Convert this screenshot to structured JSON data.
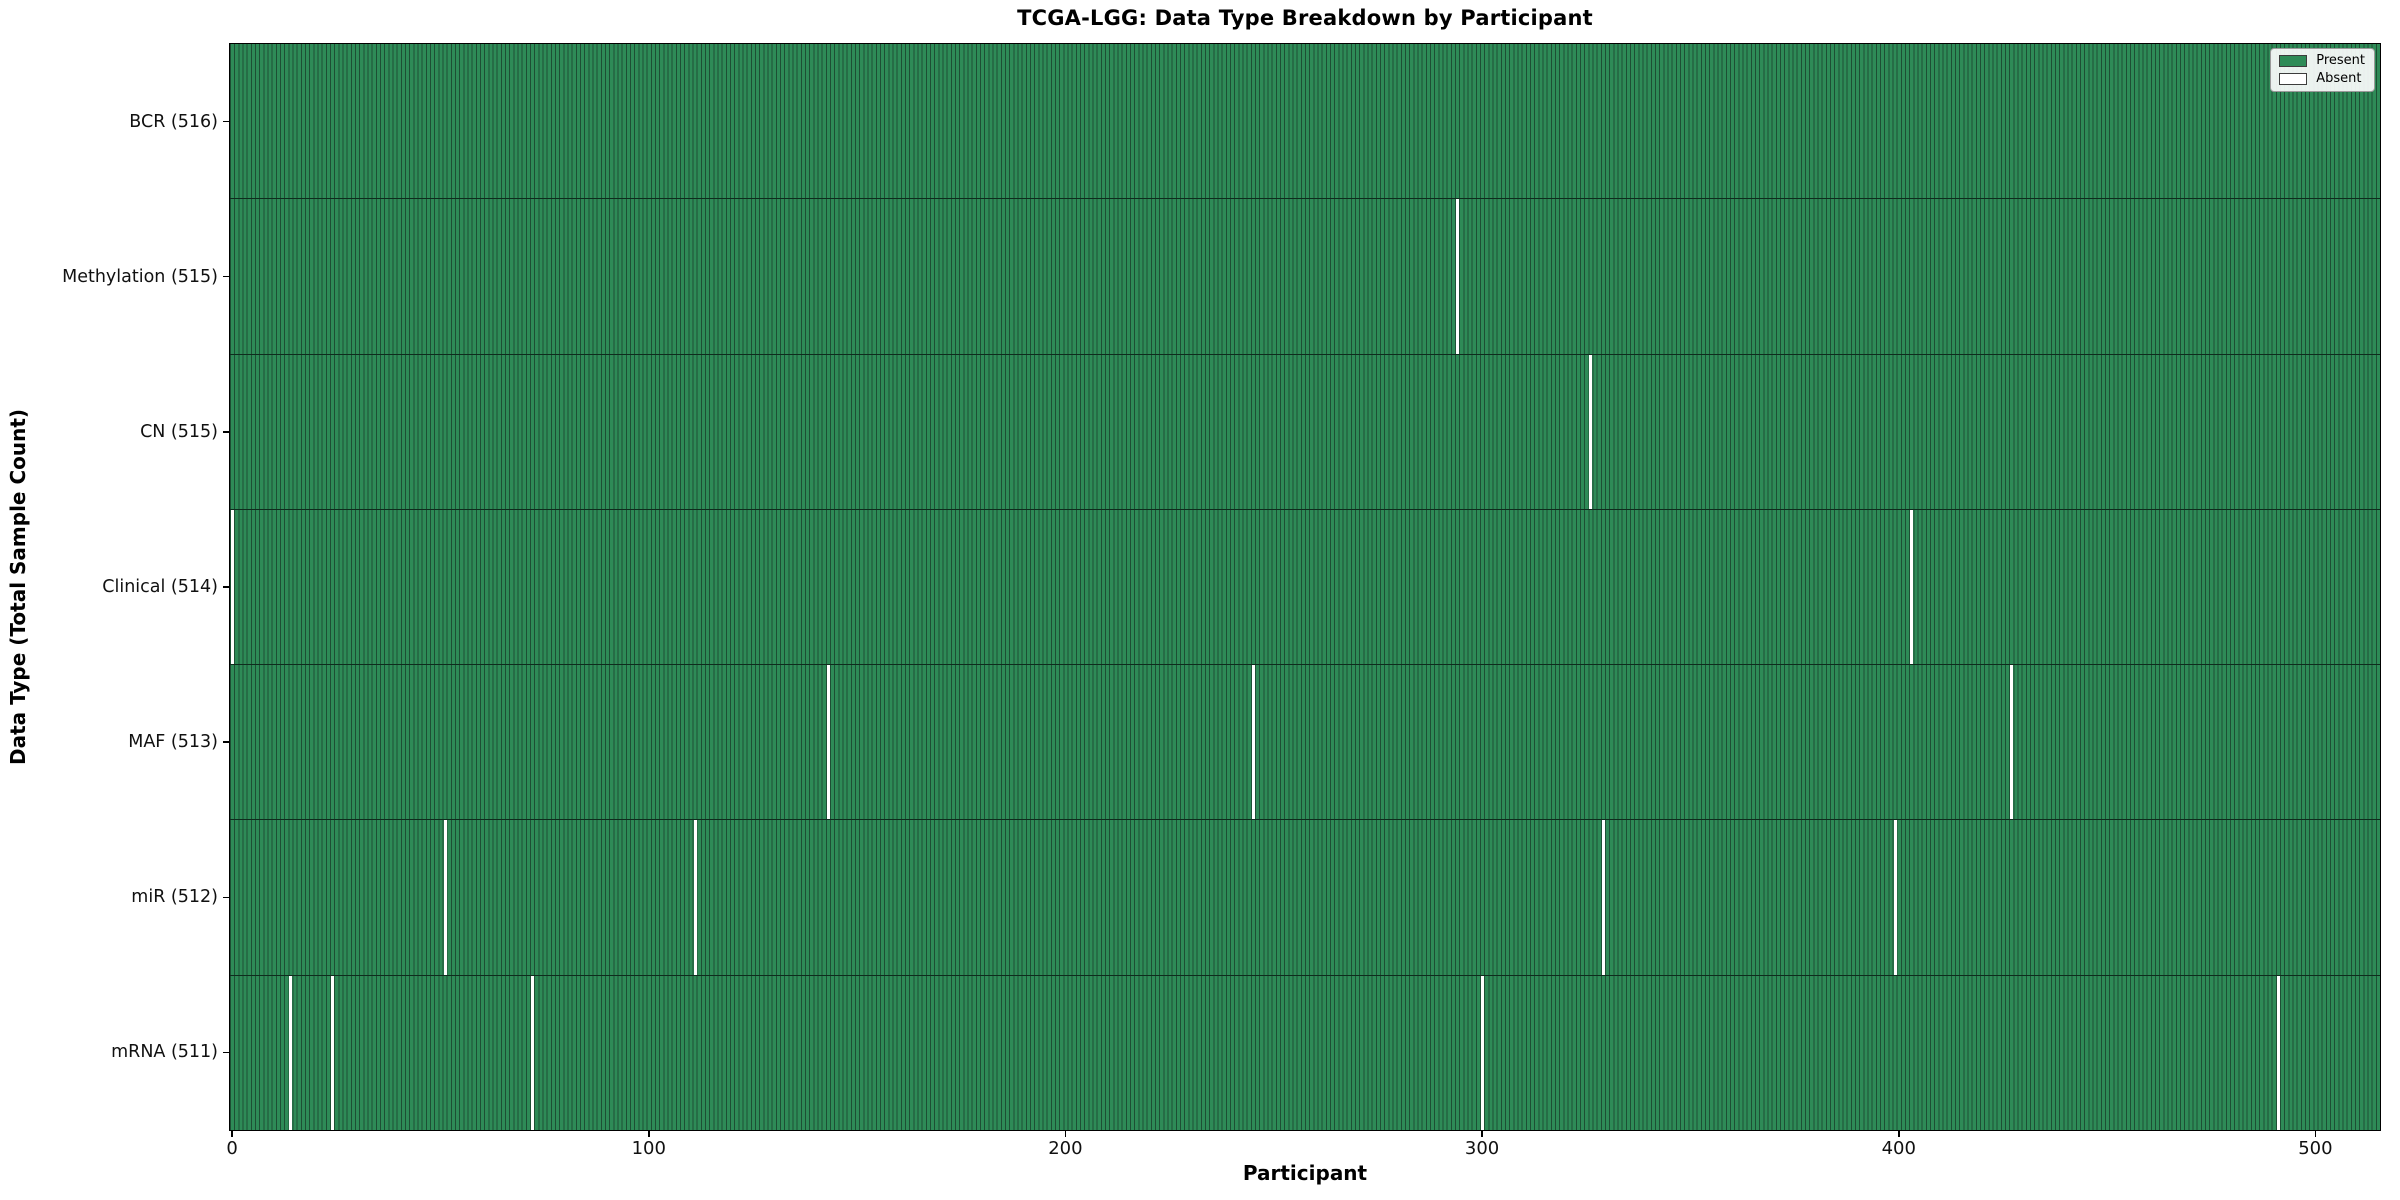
{
  "chart_data": {
    "type": "heatmap",
    "title": "TCGA-LGG: Data Type Breakdown by Participant",
    "xlabel": "Participant",
    "ylabel": "Data Type (Total Sample Count)",
    "n_participants": 516,
    "xlim": [
      -0.5,
      515.5
    ],
    "x_ticks": [
      0,
      100,
      200,
      300,
      400,
      500
    ],
    "grid": false,
    "legend_position": "upper right",
    "legend": [
      {
        "label": "Present",
        "color": "#2e8b57"
      },
      {
        "label": "Absent",
        "color": "#ffffff"
      }
    ],
    "colors": {
      "present_fill": "#2e8b57",
      "bar_edge": "#1d4f34",
      "absent_fill": "#ffffff",
      "row_divider": "#0e2c1d",
      "spine": "#000000"
    },
    "rows": [
      {
        "key": "bcr",
        "label": "BCR (516)",
        "total_present": 516,
        "absent_participants": []
      },
      {
        "key": "methylation",
        "label": "Methylation (515)",
        "total_present": 515,
        "absent_participants": [
          294
        ]
      },
      {
        "key": "cn",
        "label": "CN (515)",
        "total_present": 515,
        "absent_participants": [
          326
        ]
      },
      {
        "key": "clinical",
        "label": "Clinical (514)",
        "total_present": 514,
        "absent_participants": [
          0,
          403
        ]
      },
      {
        "key": "maf",
        "label": "MAF (513)",
        "total_present": 513,
        "absent_participants": [
          143,
          245,
          427
        ]
      },
      {
        "key": "mir",
        "label": "miR (512)",
        "total_present": 512,
        "absent_participants": [
          51,
          111,
          329,
          399
        ]
      },
      {
        "key": "mrna",
        "label": "mRNA (511)",
        "total_present": 511,
        "absent_participants": [
          14,
          24,
          72,
          300,
          491
        ]
      }
    ]
  }
}
